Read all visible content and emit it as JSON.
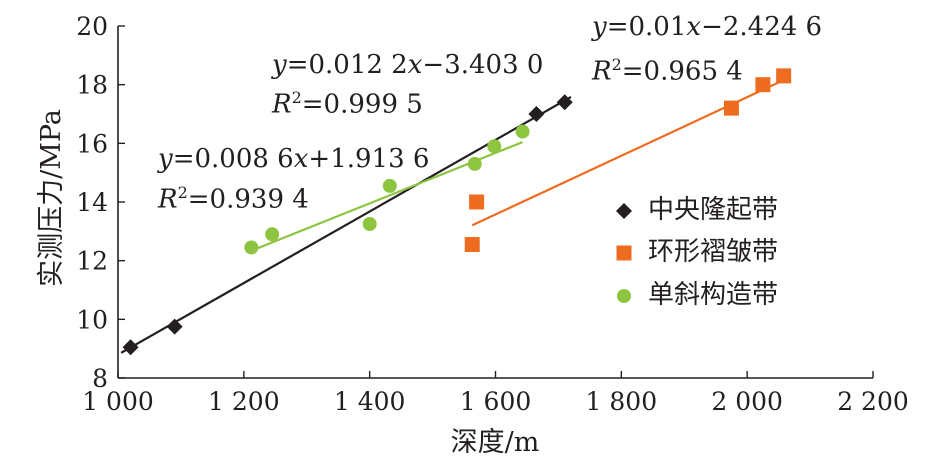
{
  "chart_data": {
    "type": "scatter",
    "xlabel": "深度/m",
    "ylabel": "实测压力/MPa",
    "xlim": [
      1000,
      2200
    ],
    "ylim": [
      8,
      20
    ],
    "x_ticks": [
      "1 000",
      "1 200",
      "1 400",
      "1 600",
      "1 800",
      "2 000",
      "2 200"
    ],
    "y_ticks": [
      "8",
      "10",
      "12",
      "14",
      "16",
      "18",
      "20"
    ],
    "legend_position": "right",
    "series": [
      {
        "name": "中央隆起带",
        "marker": "diamond",
        "color": "#231f20",
        "points": [
          [
            1020,
            9.05
          ],
          [
            1090,
            9.75
          ],
          [
            1665,
            17.0
          ],
          [
            1710,
            17.4
          ]
        ],
        "fit": {
          "slope": 0.0122,
          "intercept": -3.403,
          "x_range": [
            1005,
            1720
          ]
        },
        "equation": {
          "y_prefix": "y",
          "formula": "=0.012 2",
          "x_var": "x",
          "rest": "−3.403 0",
          "r2_prefix": "R",
          "r2_sup": "2",
          "r2_value": "=0.999 5"
        }
      },
      {
        "name": "环形褶皱带",
        "marker": "square",
        "color": "#ee6c1f",
        "points": [
          [
            1563,
            12.55
          ],
          [
            1570,
            14.0
          ],
          [
            1975,
            17.2
          ],
          [
            2025,
            18.0
          ],
          [
            2058,
            18.3
          ]
        ],
        "fit": {
          "slope": 0.01,
          "intercept": -2.4246,
          "x_range": [
            1563,
            2058
          ]
        },
        "equation": {
          "y_prefix": "y",
          "formula": "=0.01",
          "x_var": "x",
          "rest": "−2.424 6",
          "r2_prefix": "R",
          "r2_sup": "2",
          "r2_value": "=0.965 4"
        }
      },
      {
        "name": "单斜构造带",
        "marker": "circle",
        "color": "#8dc540",
        "points": [
          [
            1212,
            12.45
          ],
          [
            1245,
            12.9
          ],
          [
            1400,
            13.25
          ],
          [
            1432,
            14.55
          ],
          [
            1567,
            15.3
          ],
          [
            1598,
            15.9
          ],
          [
            1643,
            16.4
          ]
        ],
        "fit": {
          "slope": 0.0086,
          "intercept": 1.9136,
          "x_range": [
            1212,
            1643
          ]
        },
        "equation": {
          "y_prefix": "y",
          "formula": "=0.008 6",
          "x_var": "x",
          "rest": "+1.913 6",
          "r2_prefix": "R",
          "r2_sup": "2",
          "r2_value": "=0.939 4"
        }
      }
    ]
  }
}
